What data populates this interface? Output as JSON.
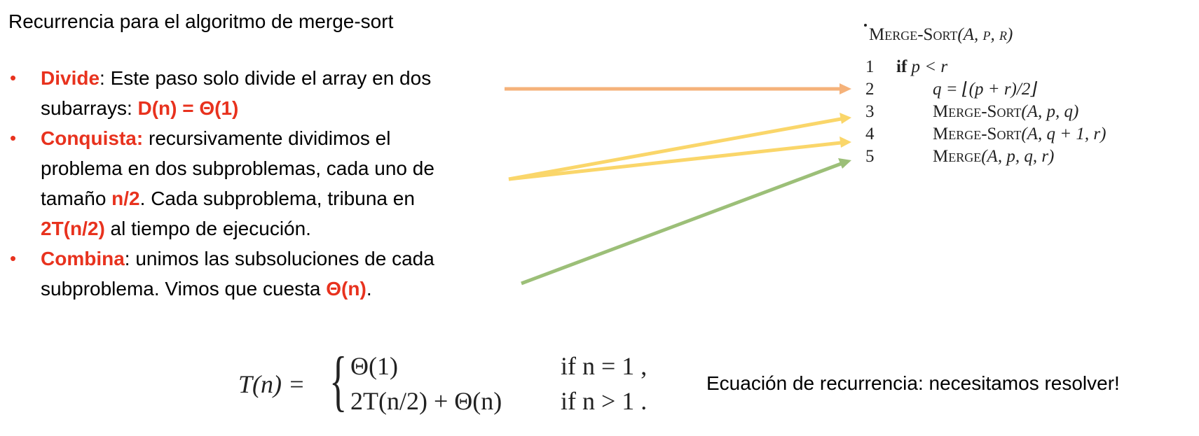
{
  "title": "Recurrencia para el algoritmo de merge-sort",
  "bullets": [
    {
      "term": "Divide",
      "text_a": ": Este paso solo divide el array en dos",
      "text_b": "subarrays: ",
      "highlight": "D(n) = Θ(1)"
    },
    {
      "term": "Conquista:",
      "text_a": " recursivamente dividimos el",
      "text_b": "problema en dos subproblemas, cada uno de",
      "text_c": "tamaño ",
      "highlight_1": "n/2",
      "text_d": ". Cada subproblema, tribuna en",
      "highlight_2": "2T(n/2)",
      "text_e": " al tiempo de ejecución."
    },
    {
      "term": "Combina",
      "text_a": ": unimos las subsoluciones de cada",
      "text_b": "subproblema. Vimos que cuesta ",
      "highlight": "Θ(n)",
      "text_c": "."
    }
  ],
  "pseudocode": {
    "header_name": "Merge-Sort",
    "header_args": "(A, p, r)",
    "lines": [
      {
        "num": "1",
        "kw": "if",
        "code": " p < r"
      },
      {
        "num": "2",
        "code": "q = ⌊(p + r)/2⌋"
      },
      {
        "num": "3",
        "name": "Merge-Sort",
        "code": "(A, p, q)"
      },
      {
        "num": "4",
        "name": "Merge-Sort",
        "code": "(A, q + 1, r)"
      },
      {
        "num": "5",
        "name": "Merge",
        "code": "(A, p, q, r)"
      }
    ]
  },
  "equation": {
    "lhs": "T(n) =",
    "case1_value": "Θ(1)",
    "case1_cond": "if n = 1 ,",
    "case2_value": "2T(n/2) + Θ(n)",
    "case2_cond": "if n > 1 ."
  },
  "note": "Ecuación de recurrencia: necesitamos resolver!",
  "colors": {
    "accent_red": "#e8321e",
    "arrow_orange": "#f5b27a",
    "arrow_yellow": "#fad66a",
    "arrow_green": "#9cbf78"
  }
}
